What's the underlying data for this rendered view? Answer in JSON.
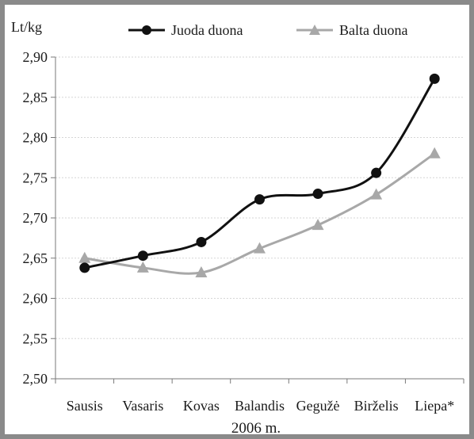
{
  "chart_data": {
    "type": "line",
    "ylabel": "Lt/kg",
    "xlabel": "2006 m.",
    "categories": [
      "Sausis",
      "Vasaris",
      "Kovas",
      "Balandis",
      "Gegužė",
      "Birželis",
      "Liepa*"
    ],
    "ylim": [
      2.5,
      2.9
    ],
    "yticks": [
      "2,50",
      "2,55",
      "2,60",
      "2,65",
      "2,70",
      "2,75",
      "2,80",
      "2,85",
      "2,90"
    ],
    "grid": true,
    "legend_position": "top",
    "series": [
      {
        "name": "Juoda duona",
        "marker": "circle",
        "color": "#111111",
        "values": [
          2.638,
          2.653,
          2.67,
          2.723,
          2.73,
          2.756,
          2.873
        ]
      },
      {
        "name": "Balta duona",
        "marker": "triangle",
        "color": "#a8a8a8",
        "values": [
          2.65,
          2.638,
          2.632,
          2.662,
          2.691,
          2.729,
          2.78
        ]
      }
    ]
  }
}
